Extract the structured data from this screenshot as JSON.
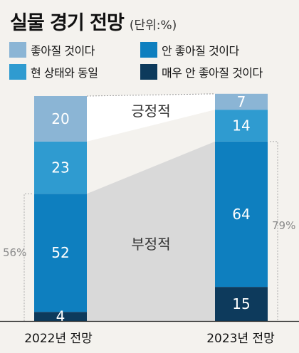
{
  "title": "실물 경기 전망",
  "unit": "(단위:%)",
  "legend": [
    {
      "label": "좋아질 것이다",
      "color": "#8bb5d5"
    },
    {
      "label": "안 좋아질 것이다",
      "color": "#0e7fbf"
    },
    {
      "label": "현 상태와 동일",
      "color": "#2f9bd0"
    },
    {
      "label": "매우 안 좋아질 것이다",
      "color": "#0d3a5c"
    }
  ],
  "chart_data": {
    "type": "bar",
    "stacked": true,
    "categories": [
      "2022년 전망",
      "2023년 전망"
    ],
    "series": [
      {
        "name": "매우 안 좋아질 것이다",
        "values": [
          4,
          15
        ],
        "color": "#0d3a5c"
      },
      {
        "name": "안 좋아질 것이다",
        "values": [
          52,
          64
        ],
        "color": "#0e7fbf"
      },
      {
        "name": "현 상태와 동일",
        "values": [
          23,
          14
        ],
        "color": "#2f9bd0"
      },
      {
        "name": "좋아질 것이다",
        "values": [
          20,
          7
        ],
        "color": "#8bb5d5"
      }
    ],
    "annotations": {
      "positive_label": "긍정적",
      "negative_label": "부정적",
      "negative_totals": [
        "56%",
        "79%"
      ]
    },
    "band_colors": {
      "negative": "#d9d9d9",
      "positive": "#ffffff"
    },
    "ylim": [
      0,
      99
    ]
  }
}
